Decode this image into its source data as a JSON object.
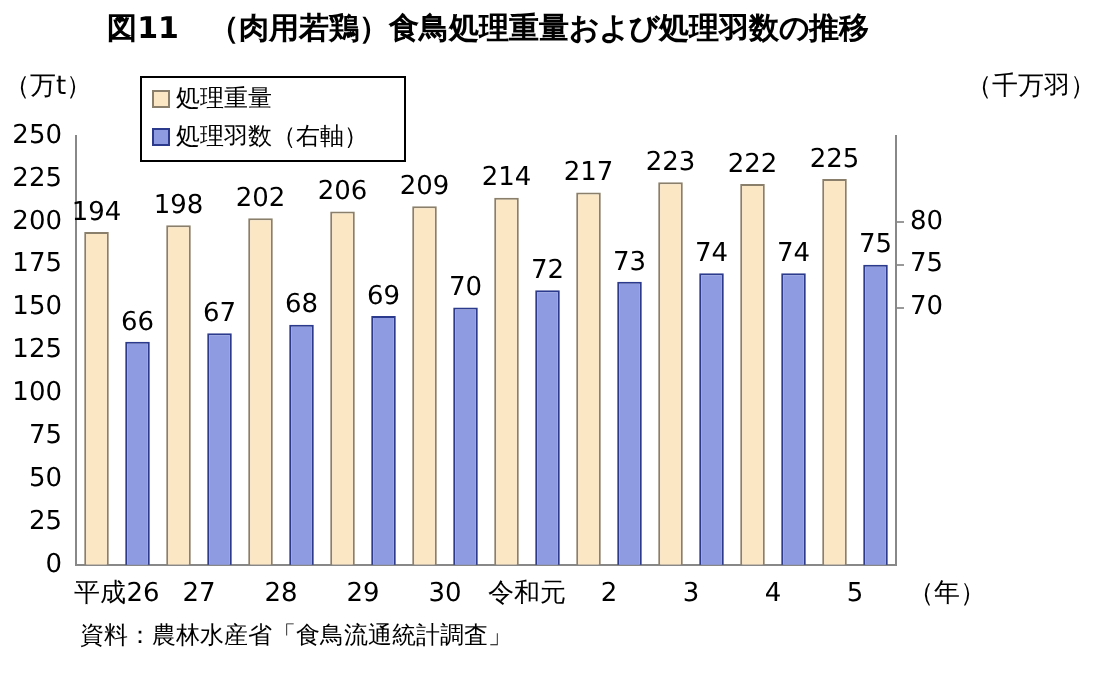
{
  "chart_data": {
    "type": "bar",
    "title": "図11　（肉用若鶏）食鳥処理重量および処理羽数の推移",
    "ylabel": "（万t）",
    "y2label": "（千万羽）",
    "xlabel": "（年）",
    "categories": [
      "平成26",
      "27",
      "28",
      "29",
      "30",
      "令和元",
      "2",
      "3",
      "4",
      "5"
    ],
    "series": [
      {
        "name": "処理重量",
        "color": "#fbe7c4",
        "values": [
          194,
          198,
          202,
          206,
          209,
          214,
          217,
          223,
          222,
          225
        ]
      },
      {
        "name": "処理羽数（右軸）",
        "color": "#8f9be0",
        "axis": "y2",
        "values": [
          66,
          67,
          68,
          69,
          70,
          72,
          73,
          74,
          74,
          75
        ]
      }
    ],
    "ylim": [
      0,
      250
    ],
    "yticks": [
      0,
      25,
      50,
      75,
      100,
      125,
      150,
      175,
      200,
      225,
      250
    ],
    "y2lim": [
      40,
      90
    ],
    "y2ticks": [
      70,
      75,
      80
    ],
    "data_labels": true,
    "grid": false,
    "legend": "top left",
    "annotations": [
      "資料：農林水産省「食鳥流通統計調査」"
    ]
  }
}
